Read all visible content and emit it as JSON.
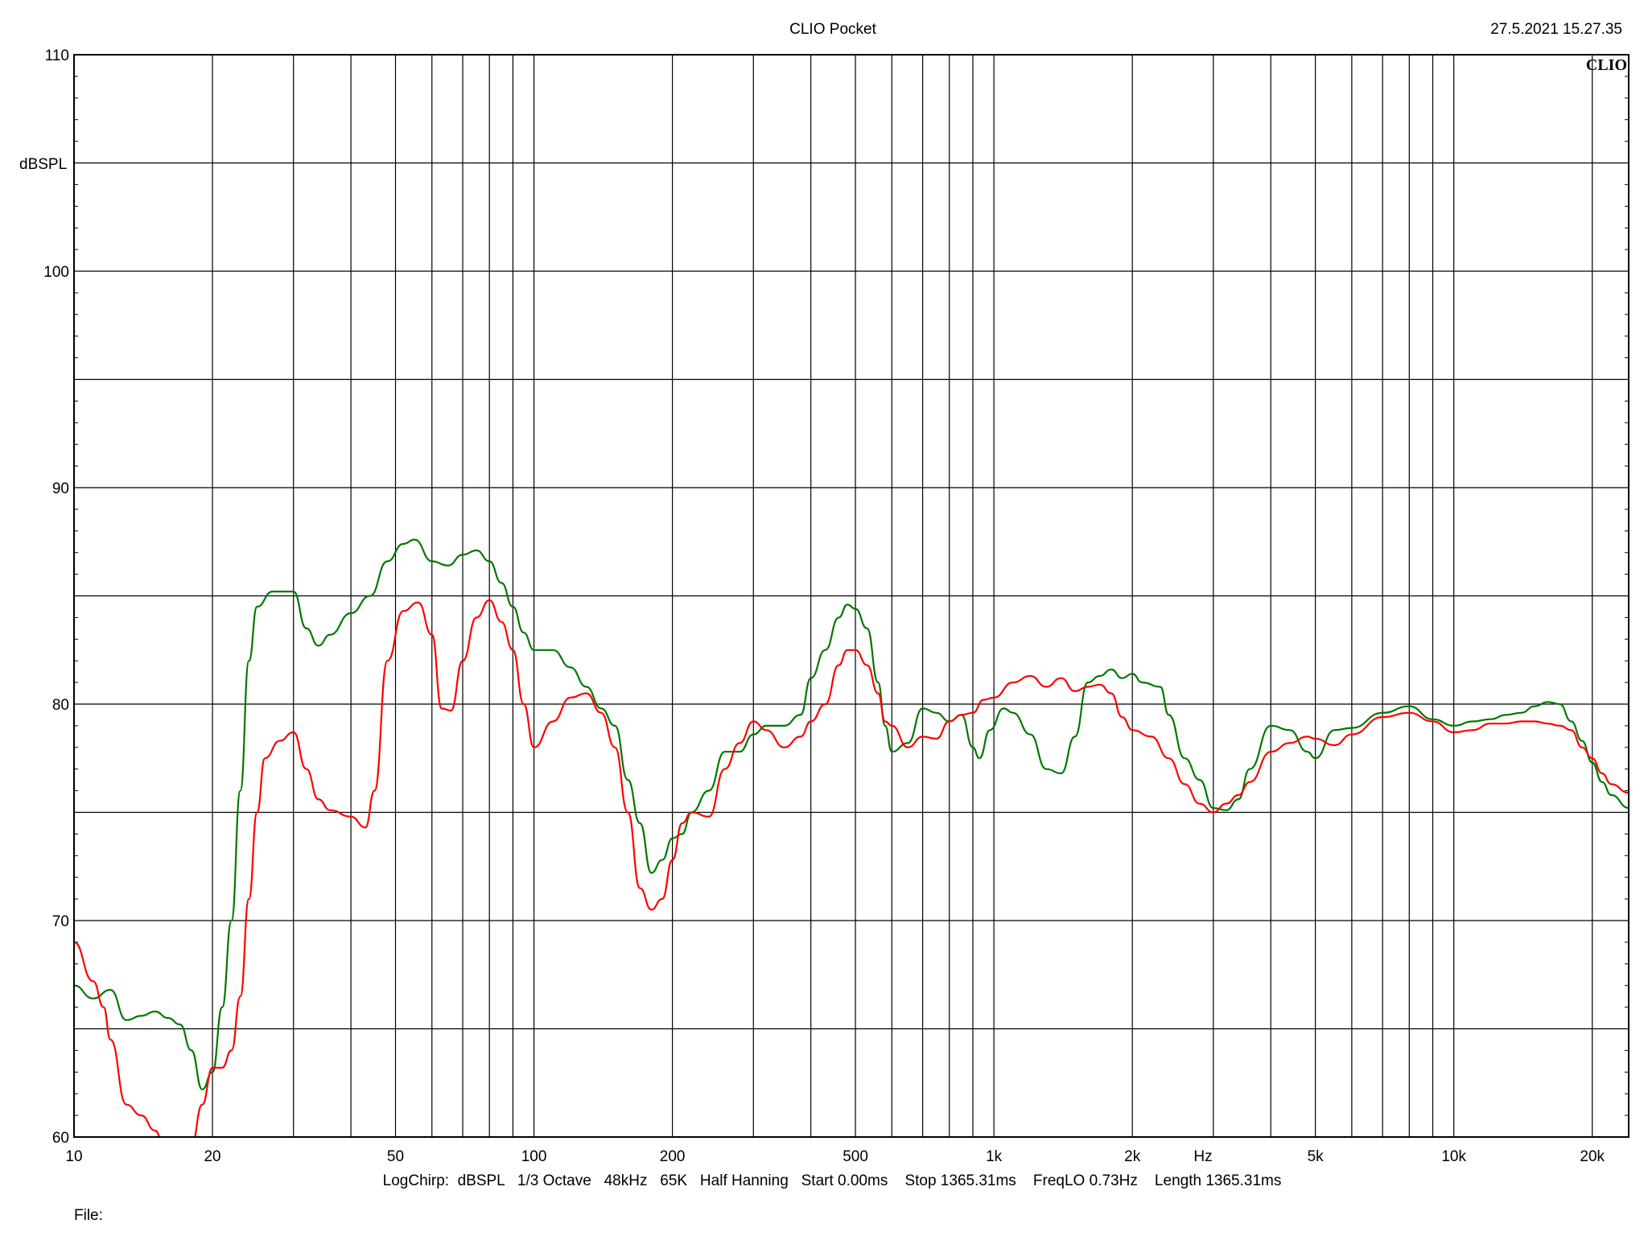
{
  "header": {
    "title": "CLIO Pocket",
    "timestamp": "27.5.2021 15.27.35",
    "logo": "CLIO"
  },
  "footer": {
    "params": "LogChirp:  dBSPL   1/3 Octave   48kHz   65K   Half Hanning   Start 0.00ms    Stop 1365.31ms    FreqLO 0.73Hz    Length 1365.31ms",
    "file_label": "File:"
  },
  "chart_data": {
    "type": "line",
    "title": "CLIO Pocket",
    "xlabel": "Hz",
    "ylabel": "dBSPL",
    "xscale": "log",
    "xlim": [
      10,
      24000
    ],
    "ylim": [
      60,
      110
    ],
    "grid": true,
    "x_ticks": [
      {
        "value": 10,
        "label": "10"
      },
      {
        "value": 20,
        "label": "20"
      },
      {
        "value": 50,
        "label": "50"
      },
      {
        "value": 100,
        "label": "100"
      },
      {
        "value": 200,
        "label": "200"
      },
      {
        "value": 500,
        "label": "500"
      },
      {
        "value": 1000,
        "label": "1k"
      },
      {
        "value": 2000,
        "label": "2k"
      },
      {
        "value": 5000,
        "label": "5k"
      },
      {
        "value": 10000,
        "label": "10k"
      },
      {
        "value": 20000,
        "label": "20k"
      }
    ],
    "y_ticks": [
      {
        "value": 60,
        "label": "60"
      },
      {
        "value": 70,
        "label": "70"
      },
      {
        "value": 80,
        "label": "80"
      },
      {
        "value": 90,
        "label": "90"
      },
      {
        "value": 100,
        "label": "100"
      },
      {
        "value": 110,
        "label": "110"
      }
    ],
    "series": [
      {
        "color": "#007800",
        "points": [
          [
            10,
            67.0
          ],
          [
            11,
            66.4
          ],
          [
            12,
            66.8
          ],
          [
            13,
            65.4
          ],
          [
            14,
            65.6
          ],
          [
            15,
            65.8
          ],
          [
            16,
            65.5
          ],
          [
            17,
            65.2
          ],
          [
            18,
            64.0
          ],
          [
            19,
            62.2
          ],
          [
            20,
            63.0
          ],
          [
            21,
            66.0
          ],
          [
            22,
            70.0
          ],
          [
            23,
            76.0
          ],
          [
            24,
            82.0
          ],
          [
            25,
            84.5
          ],
          [
            27,
            85.2
          ],
          [
            30,
            85.2
          ],
          [
            32,
            83.5
          ],
          [
            34,
            82.7
          ],
          [
            36,
            83.2
          ],
          [
            40,
            84.2
          ],
          [
            44,
            85.0
          ],
          [
            48,
            86.6
          ],
          [
            52,
            87.4
          ],
          [
            55,
            87.6
          ],
          [
            60,
            86.6
          ],
          [
            65,
            86.4
          ],
          [
            70,
            86.9
          ],
          [
            75,
            87.1
          ],
          [
            80,
            86.6
          ],
          [
            85,
            85.6
          ],
          [
            90,
            84.5
          ],
          [
            95,
            83.3
          ],
          [
            100,
            82.5
          ],
          [
            110,
            82.5
          ],
          [
            120,
            81.7
          ],
          [
            130,
            80.8
          ],
          [
            140,
            79.8
          ],
          [
            150,
            79.0
          ],
          [
            160,
            76.5
          ],
          [
            170,
            74.5
          ],
          [
            180,
            72.2
          ],
          [
            190,
            72.8
          ],
          [
            200,
            73.8
          ],
          [
            210,
            74.0
          ],
          [
            220,
            75.0
          ],
          [
            240,
            76.0
          ],
          [
            260,
            77.8
          ],
          [
            280,
            77.8
          ],
          [
            300,
            78.6
          ],
          [
            320,
            79.0
          ],
          [
            350,
            79.0
          ],
          [
            380,
            79.5
          ],
          [
            400,
            81.2
          ],
          [
            430,
            82.5
          ],
          [
            460,
            84.0
          ],
          [
            480,
            84.6
          ],
          [
            500,
            84.4
          ],
          [
            530,
            83.5
          ],
          [
            560,
            81.0
          ],
          [
            580,
            79.0
          ],
          [
            600,
            77.8
          ],
          [
            650,
            78.2
          ],
          [
            700,
            79.8
          ],
          [
            750,
            79.6
          ],
          [
            800,
            79.2
          ],
          [
            850,
            79.5
          ],
          [
            900,
            78.0
          ],
          [
            930,
            77.5
          ],
          [
            980,
            78.8
          ],
          [
            1050,
            79.8
          ],
          [
            1100,
            79.6
          ],
          [
            1200,
            78.6
          ],
          [
            1300,
            77.0
          ],
          [
            1400,
            76.8
          ],
          [
            1500,
            78.5
          ],
          [
            1600,
            81.0
          ],
          [
            1700,
            81.3
          ],
          [
            1800,
            81.6
          ],
          [
            1900,
            81.2
          ],
          [
            2000,
            81.4
          ],
          [
            2100,
            81.0
          ],
          [
            2300,
            80.8
          ],
          [
            2400,
            79.5
          ],
          [
            2600,
            77.5
          ],
          [
            2800,
            76.5
          ],
          [
            3000,
            75.2
          ],
          [
            3200,
            75.1
          ],
          [
            3400,
            75.6
          ],
          [
            3600,
            77.0
          ],
          [
            4000,
            79.0
          ],
          [
            4400,
            78.8
          ],
          [
            4800,
            77.8
          ],
          [
            5000,
            77.5
          ],
          [
            5500,
            78.8
          ],
          [
            6000,
            78.9
          ],
          [
            7000,
            79.6
          ],
          [
            8000,
            79.9
          ],
          [
            9000,
            79.3
          ],
          [
            10000,
            79.0
          ],
          [
            11000,
            79.2
          ],
          [
            12000,
            79.3
          ],
          [
            13000,
            79.5
          ],
          [
            14000,
            79.6
          ],
          [
            15000,
            79.9
          ],
          [
            16000,
            80.1
          ],
          [
            17000,
            80.0
          ],
          [
            18000,
            79.2
          ],
          [
            19000,
            78.3
          ],
          [
            20000,
            77.3
          ],
          [
            21000,
            76.4
          ],
          [
            22000,
            75.8
          ],
          [
            24000,
            75.2
          ]
        ]
      },
      {
        "color": "#ff0000",
        "points": [
          [
            10,
            69.0
          ],
          [
            11,
            67.2
          ],
          [
            11.6,
            66.0
          ],
          [
            12,
            64.5
          ],
          [
            13,
            61.5
          ],
          [
            14,
            61.0
          ],
          [
            15,
            60.3
          ],
          [
            15.6,
            59.8
          ],
          [
            16,
            59.4
          ],
          [
            17,
            59.2
          ],
          [
            18,
            59.6
          ],
          [
            19,
            61.5
          ],
          [
            20,
            63.2
          ],
          [
            21,
            63.2
          ],
          [
            22,
            64.0
          ],
          [
            23,
            66.5
          ],
          [
            24,
            71.0
          ],
          [
            25,
            75.0
          ],
          [
            26,
            77.5
          ],
          [
            28,
            78.3
          ],
          [
            30,
            78.7
          ],
          [
            32,
            77.0
          ],
          [
            34,
            75.6
          ],
          [
            36,
            75.1
          ],
          [
            40,
            74.8
          ],
          [
            43,
            74.3
          ],
          [
            45,
            76.0
          ],
          [
            48,
            82.0
          ],
          [
            52,
            84.3
          ],
          [
            56,
            84.7
          ],
          [
            60,
            83.2
          ],
          [
            63,
            79.8
          ],
          [
            66,
            79.7
          ],
          [
            70,
            82.0
          ],
          [
            75,
            84.0
          ],
          [
            80,
            84.8
          ],
          [
            85,
            83.8
          ],
          [
            90,
            82.5
          ],
          [
            95,
            80.0
          ],
          [
            100,
            78.0
          ],
          [
            110,
            79.2
          ],
          [
            120,
            80.3
          ],
          [
            130,
            80.5
          ],
          [
            140,
            79.6
          ],
          [
            150,
            78.0
          ],
          [
            160,
            75.0
          ],
          [
            170,
            71.5
          ],
          [
            180,
            70.5
          ],
          [
            190,
            71.0
          ],
          [
            200,
            72.8
          ],
          [
            210,
            74.5
          ],
          [
            220,
            75.0
          ],
          [
            240,
            74.8
          ],
          [
            260,
            77.0
          ],
          [
            280,
            78.2
          ],
          [
            300,
            79.2
          ],
          [
            320,
            78.8
          ],
          [
            350,
            78.0
          ],
          [
            380,
            78.5
          ],
          [
            400,
            79.2
          ],
          [
            430,
            80.0
          ],
          [
            460,
            81.8
          ],
          [
            480,
            82.5
          ],
          [
            500,
            82.5
          ],
          [
            530,
            81.8
          ],
          [
            560,
            80.5
          ],
          [
            580,
            79.2
          ],
          [
            600,
            79.0
          ],
          [
            650,
            78.0
          ],
          [
            700,
            78.5
          ],
          [
            750,
            78.4
          ],
          [
            800,
            79.2
          ],
          [
            850,
            79.5
          ],
          [
            900,
            79.6
          ],
          [
            950,
            80.2
          ],
          [
            1000,
            80.3
          ],
          [
            1100,
            81.0
          ],
          [
            1200,
            81.3
          ],
          [
            1300,
            80.8
          ],
          [
            1400,
            81.2
          ],
          [
            1500,
            80.6
          ],
          [
            1600,
            80.8
          ],
          [
            1700,
            80.9
          ],
          [
            1800,
            80.5
          ],
          [
            1900,
            79.4
          ],
          [
            2000,
            78.8
          ],
          [
            2200,
            78.5
          ],
          [
            2400,
            77.5
          ],
          [
            2600,
            76.3
          ],
          [
            2800,
            75.4
          ],
          [
            3000,
            75.0
          ],
          [
            3200,
            75.4
          ],
          [
            3400,
            75.8
          ],
          [
            3600,
            76.4
          ],
          [
            4000,
            77.8
          ],
          [
            4400,
            78.2
          ],
          [
            4800,
            78.5
          ],
          [
            5000,
            78.4
          ],
          [
            5500,
            78.1
          ],
          [
            6000,
            78.6
          ],
          [
            7000,
            79.4
          ],
          [
            8000,
            79.6
          ],
          [
            9000,
            79.2
          ],
          [
            10000,
            78.7
          ],
          [
            11000,
            78.8
          ],
          [
            12000,
            79.1
          ],
          [
            13000,
            79.1
          ],
          [
            14000,
            79.2
          ],
          [
            15000,
            79.2
          ],
          [
            16000,
            79.1
          ],
          [
            17000,
            79.0
          ],
          [
            18000,
            78.8
          ],
          [
            19000,
            78.0
          ],
          [
            20000,
            77.5
          ],
          [
            21000,
            76.8
          ],
          [
            22000,
            76.3
          ],
          [
            24000,
            75.9
          ]
        ]
      }
    ]
  }
}
